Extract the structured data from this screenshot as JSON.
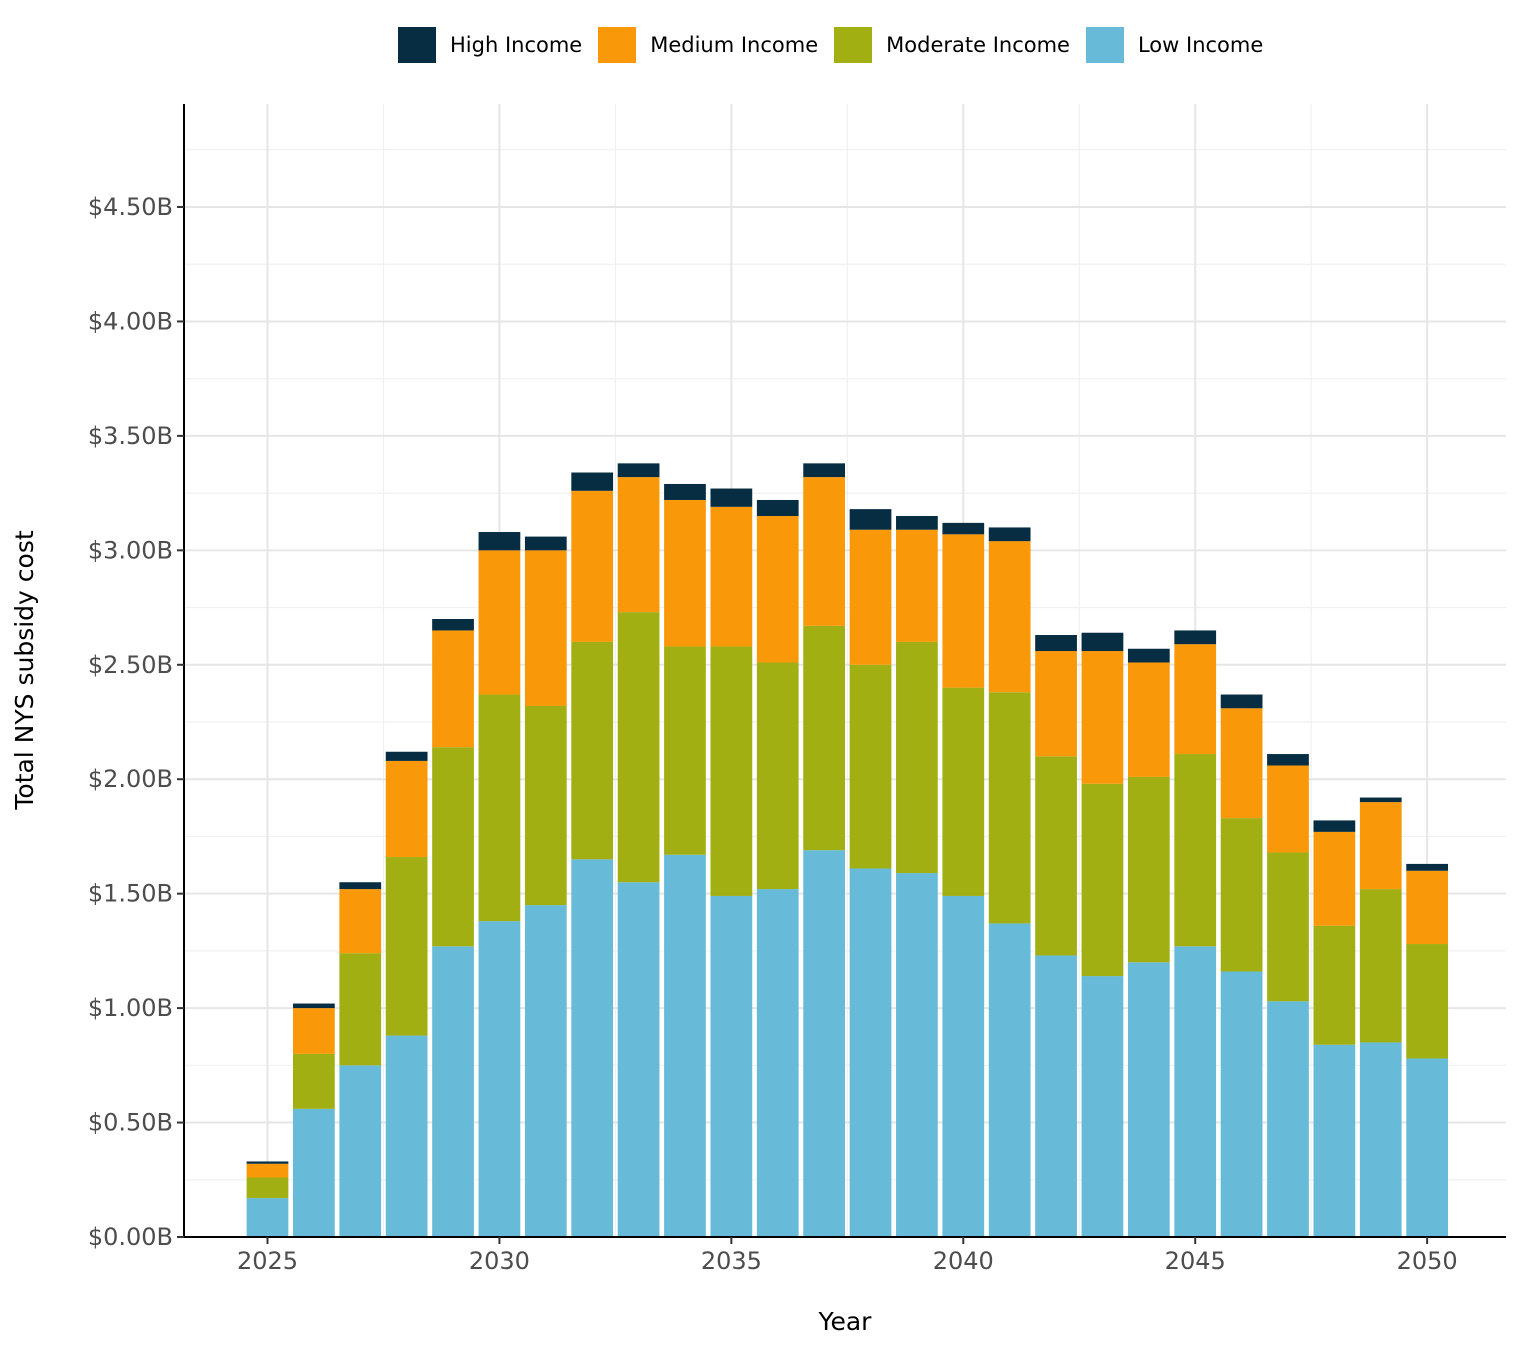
{
  "chart_data": {
    "type": "bar",
    "stacked": true,
    "title": "",
    "xlabel": "Year",
    "ylabel": "Total NYS subsidy cost",
    "ylim": [
      0,
      4.95
    ],
    "y_ticks": [
      0,
      0.5,
      1.0,
      1.5,
      2.0,
      2.5,
      3.0,
      3.5,
      4.0,
      4.5
    ],
    "y_tick_labels": [
      "$0.00B",
      "$0.50B",
      "$1.00B",
      "$1.50B",
      "$2.00B",
      "$2.50B",
      "$3.00B",
      "$3.50B",
      "$4.00B",
      "$4.50B"
    ],
    "x_ticks": [
      2025,
      2030,
      2035,
      2040,
      2045,
      2050
    ],
    "x_tick_labels": [
      "2025",
      "2030",
      "2035",
      "2040",
      "2045",
      "2050"
    ],
    "xlim": [
      2023.2,
      2051.7
    ],
    "grid": true,
    "legend_position": "top",
    "categories": [
      2025,
      2026,
      2027,
      2028,
      2029,
      2030,
      2031,
      2032,
      2033,
      2034,
      2035,
      2036,
      2037,
      2038,
      2039,
      2040,
      2041,
      2042,
      2043,
      2044,
      2045,
      2046,
      2047,
      2048,
      2049,
      2050
    ],
    "series": [
      {
        "name": "Low Income",
        "color": "#67BBD8",
        "values": [
          0.17,
          0.56,
          0.75,
          0.88,
          1.27,
          1.38,
          1.45,
          1.65,
          1.55,
          1.67,
          1.49,
          1.52,
          1.69,
          1.61,
          1.59,
          1.49,
          1.37,
          1.23,
          1.14,
          1.2,
          1.27,
          1.16,
          1.03,
          0.84,
          0.85,
          0.78
        ]
      },
      {
        "name": "Moderate Income",
        "color": "#A1AF13",
        "values": [
          0.09,
          0.24,
          0.49,
          0.78,
          0.87,
          0.99,
          0.87,
          0.95,
          1.18,
          0.91,
          1.09,
          0.99,
          0.98,
          0.89,
          1.01,
          0.91,
          1.01,
          0.87,
          0.84,
          0.81,
          0.84,
          0.67,
          0.65,
          0.52,
          0.67,
          0.5
        ]
      },
      {
        "name": "Medium Income",
        "color": "#F99808",
        "values": [
          0.06,
          0.2,
          0.28,
          0.42,
          0.51,
          0.63,
          0.68,
          0.66,
          0.59,
          0.64,
          0.61,
          0.64,
          0.65,
          0.59,
          0.49,
          0.67,
          0.66,
          0.46,
          0.58,
          0.5,
          0.48,
          0.48,
          0.38,
          0.41,
          0.38,
          0.32
        ]
      },
      {
        "name": "High Income",
        "color": "#062D42",
        "values": [
          0.01,
          0.02,
          0.03,
          0.04,
          0.05,
          0.08,
          0.06,
          0.08,
          0.06,
          0.07,
          0.08,
          0.07,
          0.06,
          0.09,
          0.06,
          0.05,
          0.06,
          0.07,
          0.08,
          0.06,
          0.06,
          0.06,
          0.05,
          0.05,
          0.02,
          0.03
        ]
      }
    ]
  },
  "legend": [
    {
      "label": "High Income",
      "color": "#062D42"
    },
    {
      "label": "Medium Income",
      "color": "#F99808"
    },
    {
      "label": "Moderate Income",
      "color": "#A1AF13"
    },
    {
      "label": "Low Income",
      "color": "#67BBD8"
    }
  ]
}
